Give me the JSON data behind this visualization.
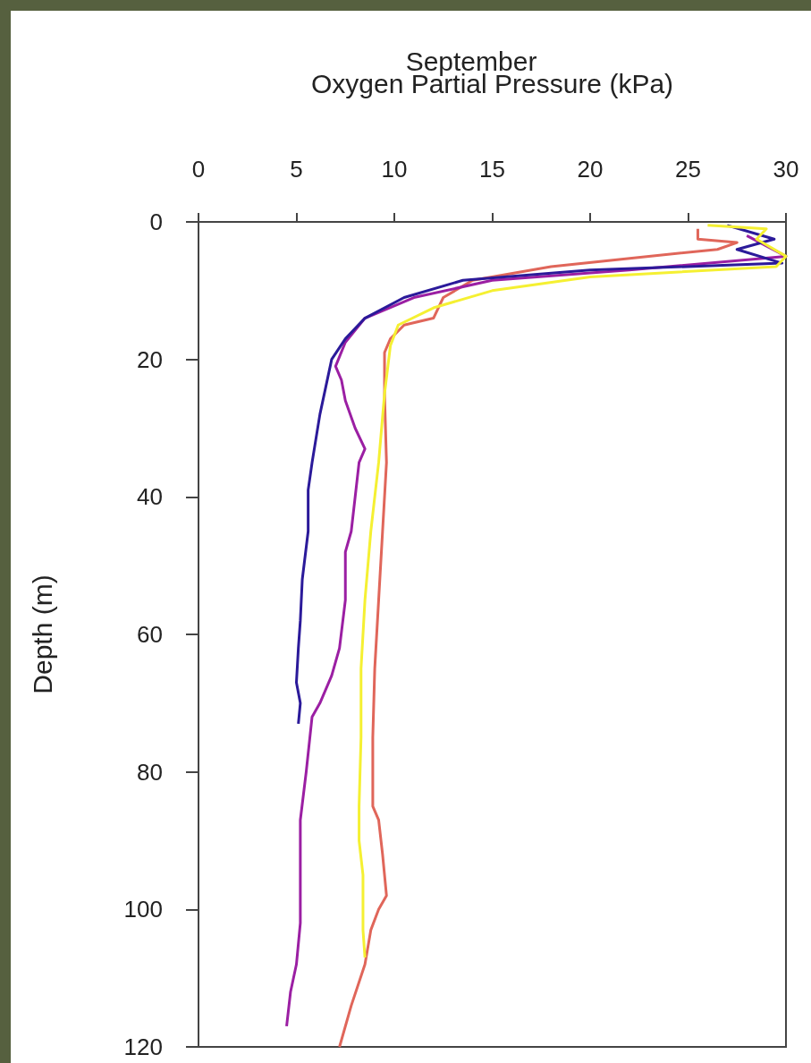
{
  "chart_data": {
    "type": "line",
    "title": "September",
    "xlabel": "Oxygen Partial Pressure (kPa)",
    "ylabel": "Depth (m)",
    "xlim": [
      0,
      30
    ],
    "xticks": [
      0,
      5,
      10,
      15,
      20,
      25,
      30
    ],
    "ylim": [
      120,
      0
    ],
    "yticks": [
      0,
      20,
      40,
      60,
      80,
      100,
      120
    ],
    "grid": false,
    "marker": "none",
    "line_style": "solid",
    "series": [
      {
        "color": "#e0665a",
        "x": [
          25.5,
          25.5,
          27.5,
          26.5,
          23,
          18,
          14,
          12.5,
          12,
          10.5,
          9.8,
          9.5,
          9.5,
          9.6,
          9.4,
          9.2,
          9,
          8.9,
          8.9,
          9.2,
          9.4,
          9.6,
          9.2,
          8.8,
          8.5,
          7.8,
          7.2
        ],
        "values": [
          1,
          2.5,
          3,
          4,
          5,
          6.5,
          8.5,
          11,
          14,
          15,
          17,
          19,
          25,
          35,
          45,
          55,
          65,
          75,
          85,
          87,
          92,
          98,
          100,
          103,
          108,
          114,
          120
        ]
      },
      {
        "color": "#9b1fa3",
        "x": [
          28,
          30,
          22,
          15,
          11,
          8.5,
          7.5,
          7,
          7.3,
          7.5,
          8,
          8.5,
          8.2,
          8,
          7.8,
          7.5,
          7.5,
          7.2,
          6.8,
          6.2,
          5.8,
          5.5,
          5.2,
          5.2,
          5.2,
          5,
          4.7,
          4.5
        ],
        "values": [
          2,
          5,
          7,
          8.5,
          11,
          14,
          17.5,
          21,
          23,
          26,
          30,
          33,
          35,
          40,
          45,
          48,
          55,
          62,
          66,
          70,
          72,
          80,
          87,
          95,
          102,
          108,
          112,
          117
        ]
      },
      {
        "color": "#2b1a9a",
        "x": [
          27,
          29.4,
          27.5,
          29.8,
          20,
          13.5,
          10.5,
          8.5,
          7.5,
          6.8,
          6.5,
          6.2,
          5.8,
          5.6,
          5.6,
          5.3,
          5.2,
          5.1,
          5,
          5.2,
          5.1
        ],
        "values": [
          0.5,
          2.5,
          4,
          6,
          7,
          8.5,
          11,
          14,
          17,
          20,
          24,
          28,
          35,
          39,
          45,
          52,
          58,
          62,
          67,
          70,
          73
        ]
      },
      {
        "color": "#f5f032",
        "x": [
          26,
          29,
          28.5,
          30,
          29.5,
          20,
          15,
          12,
          10.2,
          9.8,
          9.5,
          9.2,
          8.8,
          8.5,
          8.3,
          8.3,
          8.2,
          8.2,
          8.4,
          8.4,
          8.5
        ],
        "values": [
          0.5,
          1,
          2.5,
          5,
          6.5,
          8,
          10,
          12.5,
          15,
          18,
          25,
          35,
          45,
          55,
          65,
          75,
          85,
          90,
          95,
          103,
          107
        ]
      }
    ]
  }
}
